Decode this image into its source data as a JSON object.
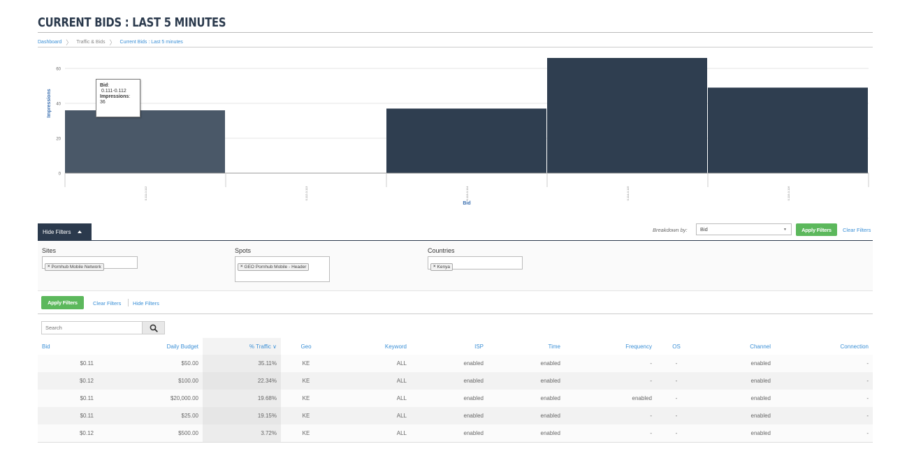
{
  "page": {
    "title": "CURRENT BIDS : LAST 5 MINUTES"
  },
  "breadcrumb": [
    {
      "label": "Dashboard"
    },
    {
      "label": "Traffic & Bids"
    },
    {
      "label": "Current Bids : Last 5 minutes"
    }
  ],
  "chart_data": {
    "type": "bar",
    "xlabel": "Bid",
    "ylabel": "Impressions",
    "ylim": [
      0,
      65
    ],
    "yticks": [
      0,
      20,
      40,
      60
    ],
    "grid": true,
    "categories": [
      "0.111-0.112",
      "0.112-0.113",
      "0.113-0.114",
      "0.114-0.115",
      "0.115-0.116"
    ],
    "values": [
      36,
      0,
      37,
      66,
      49
    ],
    "colors": {
      "bar": "#2f3e50",
      "bar_hover": "#4a5868",
      "grid": "#e6e6e6"
    },
    "tooltip": {
      "bid_label": "Bid",
      "bid_value": "0.111-0.112",
      "impressions_label": "Impressions",
      "impressions_value": "36"
    }
  },
  "filters": {
    "hide_label": "Hide Filters",
    "breakdown_label": "Breakdown by:",
    "breakdown_value": "Bid",
    "apply_label": "Apply Filters",
    "clear_label": "Clear Filters",
    "groups": [
      {
        "label": "Sites",
        "tags": [
          "Pornhub Mobile Network"
        ]
      },
      {
        "label": "Spots",
        "tags": [
          "GEO Pornhub Mobile - Header"
        ]
      },
      {
        "label": "Countries",
        "tags": [
          "Kenya"
        ]
      }
    ]
  },
  "search": {
    "placeholder": "Search"
  },
  "table": {
    "columns": [
      "Bid",
      "Daily Budget",
      "% Traffic",
      "Geo",
      "Keyword",
      "ISP",
      "Time",
      "Frequency",
      "OS",
      "Channel",
      "Connection"
    ],
    "sorted_column": "% Traffic",
    "rows": [
      [
        "$0.11",
        "$50.00",
        "35.11%",
        "KE",
        "ALL",
        "enabled",
        "enabled",
        "-",
        "-",
        "enabled",
        "-"
      ],
      [
        "$0.12",
        "$100.00",
        "22.34%",
        "KE",
        "ALL",
        "enabled",
        "enabled",
        "-",
        "-",
        "enabled",
        "-"
      ],
      [
        "$0.11",
        "$20,000.00",
        "19.68%",
        "KE",
        "ALL",
        "enabled",
        "enabled",
        "enabled",
        "-",
        "enabled",
        "-"
      ],
      [
        "$0.11",
        "$25.00",
        "19.15%",
        "KE",
        "ALL",
        "enabled",
        "enabled",
        "-",
        "-",
        "enabled",
        "-"
      ],
      [
        "$0.12",
        "$500.00",
        "3.72%",
        "KE",
        "ALL",
        "enabled",
        "enabled",
        "-",
        "-",
        "enabled",
        "-"
      ]
    ]
  },
  "colors": {
    "accent": "#3a8fd6",
    "brand_dark": "#2b3a4d",
    "apply_green": "#5cb85c"
  }
}
